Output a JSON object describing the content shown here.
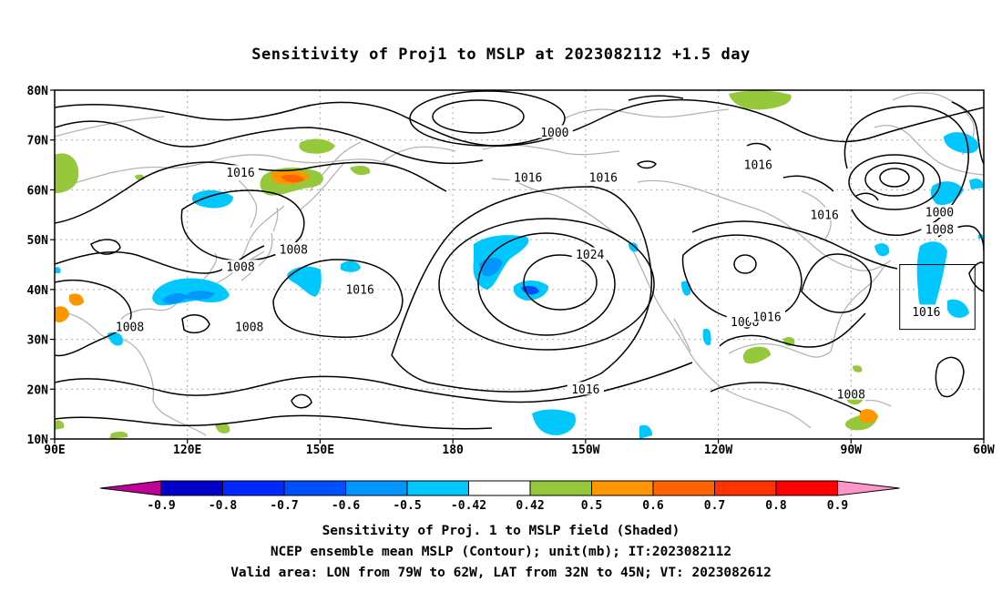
{
  "title": "Sensitivity of Proj1 to MSLP at 2023082112 +1.5 day",
  "map": {
    "lat_labels": [
      "80N",
      "70N",
      "60N",
      "50N",
      "40N",
      "30N",
      "20N",
      "10N"
    ],
    "lon_labels": [
      "90E",
      "120E",
      "150E",
      "180",
      "150W",
      "120W",
      "90W",
      "60W"
    ],
    "contour_labels": [
      {
        "text": "1000",
        "lon": 203,
        "lat": 71.5
      },
      {
        "text": "1016",
        "lon": 249,
        "lat": 65
      },
      {
        "text": "1016",
        "lon": 132,
        "lat": 63.5
      },
      {
        "text": "1016",
        "lon": 197,
        "lat": 62.5
      },
      {
        "text": "1016",
        "lon": 214,
        "lat": 62.5
      },
      {
        "text": "1016",
        "lon": 264,
        "lat": 55
      },
      {
        "text": "1000",
        "lon": 290,
        "lat": 55.5
      },
      {
        "text": "1008",
        "lon": 290,
        "lat": 52
      },
      {
        "text": "1008",
        "lon": 144,
        "lat": 48
      },
      {
        "text": "1008",
        "lon": 132,
        "lat": 44.5
      },
      {
        "text": "1024",
        "lon": 211,
        "lat": 47
      },
      {
        "text": "1016",
        "lon": 159,
        "lat": 40
      },
      {
        "text": "1008",
        "lon": 107,
        "lat": 32.5
      },
      {
        "text": "1008",
        "lon": 134,
        "lat": 32.5
      },
      {
        "text": "1008",
        "lon": 246,
        "lat": 33.5
      },
      {
        "text": "1016",
        "lon": 251,
        "lat": 34.5
      },
      {
        "text": "1016",
        "lon": 287,
        "lat": 35.5
      },
      {
        "text": "1016",
        "lon": 210,
        "lat": 20
      },
      {
        "text": "1008",
        "lon": 270,
        "lat": 19
      }
    ],
    "valid_box": {
      "lon_min": 281,
      "lon_max": 298,
      "lat_min": 32,
      "lat_max": 45
    }
  },
  "colorbar": {
    "labels": [
      "-0.9",
      "-0.8",
      "-0.7",
      "-0.6",
      "-0.5",
      "-0.42",
      "0.42",
      "0.5",
      "0.6",
      "0.7",
      "0.8",
      "0.9"
    ],
    "colors": [
      "#c00096",
      "#0000c8",
      "#0028ff",
      "#0050ff",
      "#0096ff",
      "#00c8ff",
      "#ffffff",
      "#96c83c",
      "#ff9600",
      "#ff6400",
      "#ff3200",
      "#ff0000",
      "#ff96c8"
    ]
  },
  "captions": {
    "line1": "Sensitivity of Proj. 1 to MSLP field (Shaded)",
    "line2": "NCEP ensemble mean MSLP (Contour); unit(mb); IT:2023082112",
    "line3": "Valid area: LON from 79W to 62W, LAT from 32N to 45N; VT: 2023082612"
  }
}
